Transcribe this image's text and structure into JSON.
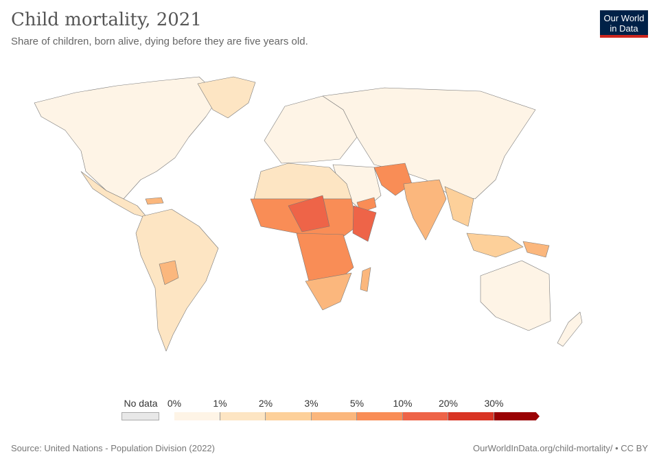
{
  "header": {
    "title": "Child mortality, 2021",
    "subtitle": "Share of children, born alive, dying before they are five years old.",
    "logo_line1": "Our World",
    "logo_line2": "in Data"
  },
  "legend": {
    "no_data": "No data",
    "ticks": [
      "0%",
      "1%",
      "2%",
      "3%",
      "5%",
      "10%",
      "20%",
      "30%"
    ],
    "bins": [
      {
        "range": "0-1%",
        "color": "#fef4e6"
      },
      {
        "range": "1-2%",
        "color": "#fde5c3"
      },
      {
        "range": "2-3%",
        "color": "#fdd09a"
      },
      {
        "range": "3-5%",
        "color": "#fbb77d"
      },
      {
        "range": "5-10%",
        "color": "#f98d56"
      },
      {
        "range": "10-20%",
        "color": "#ee6448"
      },
      {
        "range": "20-30%",
        "color": "#d93424"
      },
      {
        "range": ">30%",
        "color": "#9a0204"
      }
    ]
  },
  "footer": {
    "source": "Source: United Nations - Population Division (2022)",
    "url": "OurWorldInData.org/child-mortality/ • CC BY"
  }
}
